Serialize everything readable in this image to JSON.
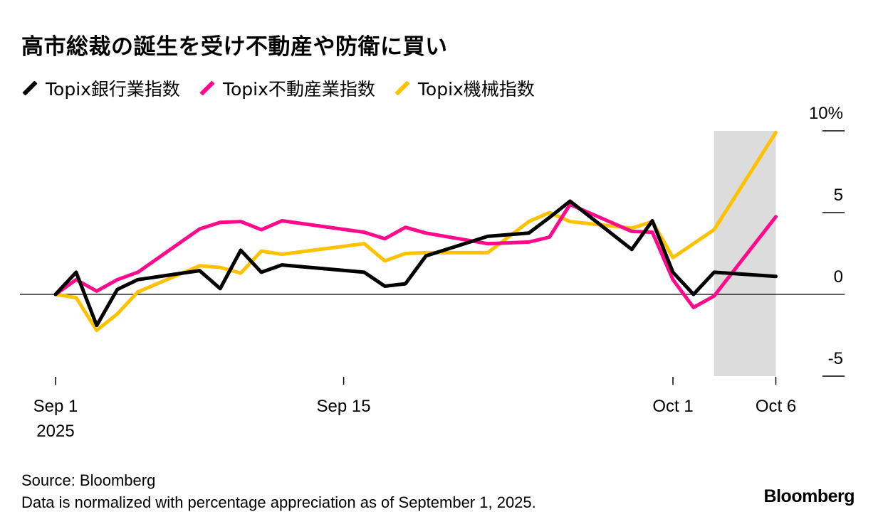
{
  "title": "高市総裁の誕生を受け不動産や防衛に買い",
  "source": "Source: Bloomberg",
  "note": "Data is normalized with percentage appreciation as of September 1, 2025.",
  "logo": "Bloomberg",
  "colors": {
    "banks": "#000000",
    "realestate": "#ff0a8c",
    "machinery": "#ffc200",
    "shade": "#dcdcdc"
  },
  "chart_data": {
    "type": "line",
    "title": "高市総裁の誕生を受け不動産や防衛に買い",
    "xlabel": "",
    "ylabel": "%",
    "ylim": [
      -5.5,
      10
    ],
    "yticks": [
      {
        "value": 10,
        "label": "10%"
      },
      {
        "value": 5,
        "label": "5"
      },
      {
        "value": 0,
        "label": "0"
      },
      {
        "value": -5,
        "label": "-5"
      }
    ],
    "xticks": [
      {
        "day": 0,
        "label": "Sep 1",
        "sub": "2025"
      },
      {
        "day": 14,
        "label": "Sep 15"
      },
      {
        "day": 30,
        "label": "Oct 1"
      },
      {
        "day": 35,
        "label": "Oct 6"
      }
    ],
    "x_dates": [
      "Sep 1",
      "Sep 2",
      "Sep 3",
      "Sep 4",
      "Sep 5",
      "Sep 8",
      "Sep 9",
      "Sep 10",
      "Sep 11",
      "Sep 12",
      "Sep 16",
      "Sep 17",
      "Sep 18",
      "Sep 19",
      "Sep 22",
      "Sep 24",
      "Sep 25",
      "Sep 26",
      "Sep 29",
      "Sep 30",
      "Oct 1",
      "Oct 2",
      "Oct 3",
      "Oct 6"
    ],
    "x_days": [
      0,
      1,
      2,
      3,
      4,
      7,
      8,
      9,
      10,
      11,
      15,
      16,
      17,
      18,
      21,
      23,
      24,
      25,
      28,
      29,
      30,
      31,
      32,
      35
    ],
    "shaded_range_days": [
      32,
      35
    ],
    "grid": false,
    "legend_position": "top-left",
    "series": [
      {
        "name": "Topix銀行業指数",
        "key": "banks",
        "values": [
          0,
          1.35,
          -1.9,
          0.3,
          0.9,
          1.45,
          0.35,
          2.7,
          1.35,
          1.8,
          1.35,
          0.5,
          0.65,
          2.35,
          3.55,
          3.75,
          4.7,
          5.7,
          2.75,
          4.5,
          1.35,
          0,
          1.35,
          1.1
        ]
      },
      {
        "name": "Topix不動産業指数",
        "key": "realestate",
        "values": [
          0,
          0.9,
          0.2,
          0.9,
          1.35,
          4.0,
          4.4,
          4.45,
          3.95,
          4.5,
          3.8,
          3.4,
          4.1,
          3.75,
          3.1,
          3.2,
          3.5,
          5.5,
          3.85,
          3.8,
          0.9,
          -0.8,
          -0.1,
          4.75
        ]
      },
      {
        "name": "Topix機械指数",
        "key": "machinery",
        "values": [
          0,
          -0.2,
          -2.2,
          -1.2,
          0.15,
          1.75,
          1.65,
          1.3,
          2.65,
          2.45,
          3.1,
          2.05,
          2.5,
          2.55,
          2.55,
          4.45,
          5.0,
          4.45,
          4.05,
          4.45,
          2.25,
          3.1,
          3.95,
          9.9
        ]
      }
    ]
  }
}
